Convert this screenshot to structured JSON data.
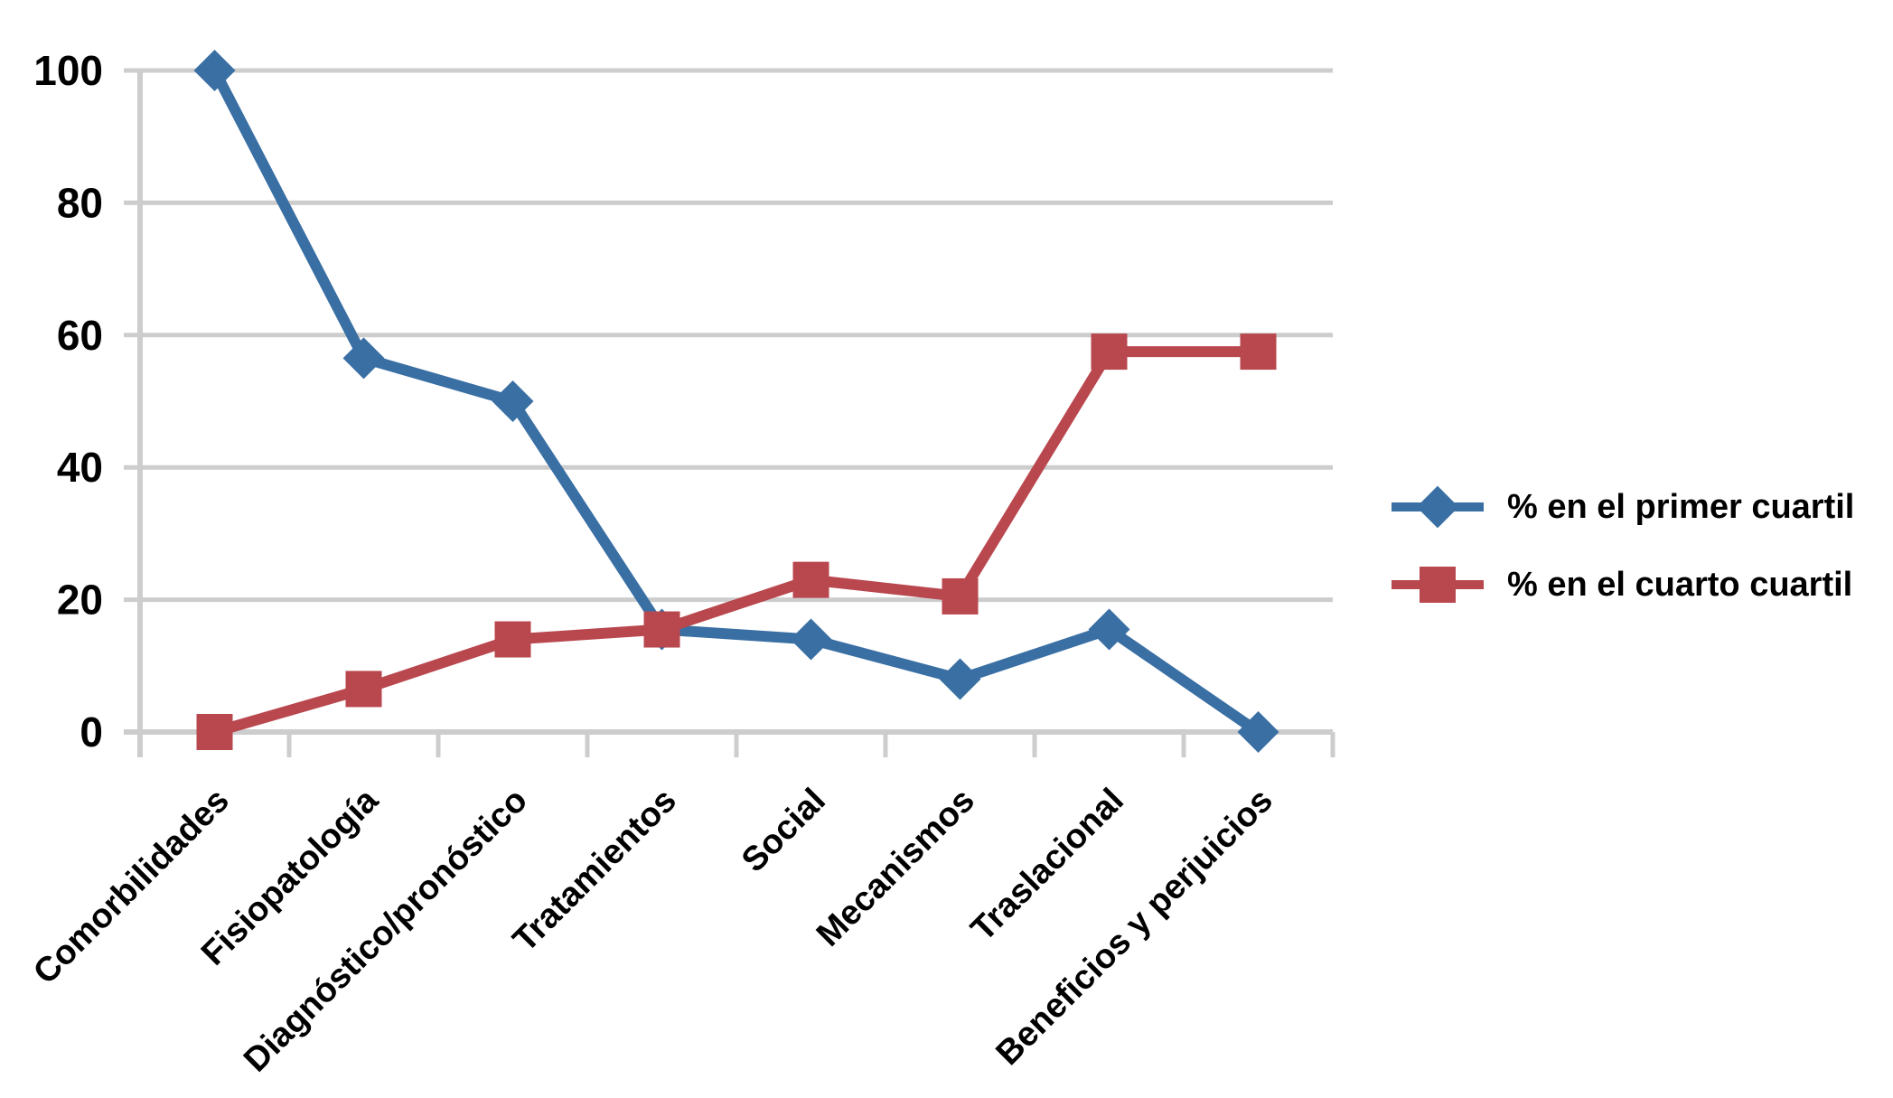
{
  "chart_data": {
    "type": "line",
    "title": "",
    "xlabel": "",
    "ylabel": "",
    "categories": [
      "Comorbilidades",
      "Fisiopatología",
      "Diagnóstico/pronóstico",
      "Tratamientos",
      "Social",
      "Mecanismos",
      "Traslacional",
      "Beneficios y perjuicios"
    ],
    "series": [
      {
        "name": "% en el primer cuartil",
        "marker": "diamond",
        "color": "#3A6FA4",
        "values": [
          100,
          56.5,
          50,
          15.5,
          14,
          8,
          15.5,
          0
        ]
      },
      {
        "name": "% en el cuarto cuartil",
        "marker": "square",
        "color": "#B9474E",
        "values": [
          0,
          6.5,
          14,
          15.5,
          23,
          20.5,
          57.5,
          57.5
        ]
      }
    ],
    "ylim": [
      0,
      100
    ],
    "yticks": [
      0,
      20,
      40,
      60,
      80,
      100
    ],
    "grid": "horizontal",
    "legend_position": "right"
  },
  "colors": {
    "grid": "#CDCDCD",
    "axis": "#CDCDCD",
    "text": "#000000",
    "background": "#FFFFFF"
  }
}
